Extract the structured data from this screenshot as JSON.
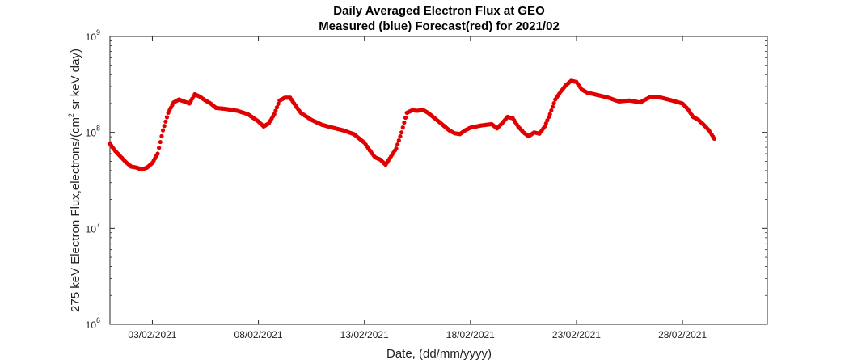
{
  "chart_data": {
    "type": "scatter",
    "title": "Daily Averaged Electron Flux at GEO",
    "subtitle": "Measured (blue) Forecast(red) for 2021/02",
    "xlabel": "Date, (dd/mm/yyyy)",
    "ylabel": {
      "main": "275 keV Electron Flux,electrons/(cm",
      "sup": "2",
      "tail": " sr keV day)"
    },
    "y_scale": "log",
    "ylim": [
      1000000,
      1000000000
    ],
    "y_ticks": [
      {
        "value": 1000000,
        "base": "10",
        "exp": "6"
      },
      {
        "value": 10000000,
        "base": "10",
        "exp": "7"
      },
      {
        "value": 100000000,
        "base": "10",
        "exp": "8"
      },
      {
        "value": 1000000000,
        "base": "10",
        "exp": "9"
      }
    ],
    "xlim": [
      "2021-02-01",
      "2021-03-04"
    ],
    "x_ticks": [
      {
        "value": "2021-02-03",
        "label": "03/02/2021"
      },
      {
        "value": "2021-02-08",
        "label": "08/02/2021"
      },
      {
        "value": "2021-02-13",
        "label": "13/02/2021"
      },
      {
        "value": "2021-02-18",
        "label": "18/02/2021"
      },
      {
        "value": "2021-02-23",
        "label": "23/02/2021"
      },
      {
        "value": "2021-02-28",
        "label": "28/02/2021"
      }
    ],
    "grid": false,
    "series": [
      {
        "color": "#e00000",
        "points": [
          [
            "2021-02-01T00:00",
            76000000.0
          ],
          [
            "2021-02-01T06:00",
            64000000.0
          ],
          [
            "2021-02-01T12:00",
            56000000.0
          ],
          [
            "2021-02-01T18:00",
            49000000.0
          ],
          [
            "2021-02-02T00:00",
            44000000.0
          ],
          [
            "2021-02-02T06:00",
            43000000.0
          ],
          [
            "2021-02-02T12:00",
            41000000.0
          ],
          [
            "2021-02-02T18:00",
            43000000.0
          ],
          [
            "2021-02-03T00:00",
            48000000.0
          ],
          [
            "2021-02-03T06:00",
            60000000.0
          ],
          [
            "2021-02-03T12:00",
            105000000.0
          ],
          [
            "2021-02-03T18:00",
            160000000.0
          ],
          [
            "2021-02-04T00:00",
            205000000.0
          ],
          [
            "2021-02-04T06:00",
            220000000.0
          ],
          [
            "2021-02-04T12:00",
            210000000.0
          ],
          [
            "2021-02-04T18:00",
            200000000.0
          ],
          [
            "2021-02-05T00:00",
            250000000.0
          ],
          [
            "2021-02-05T06:00",
            235000000.0
          ],
          [
            "2021-02-05T12:00",
            215000000.0
          ],
          [
            "2021-02-05T18:00",
            200000000.0
          ],
          [
            "2021-02-06T00:00",
            180000000.0
          ],
          [
            "2021-02-06T12:00",
            175000000.0
          ],
          [
            "2021-02-07T00:00",
            168000000.0
          ],
          [
            "2021-02-07T12:00",
            155000000.0
          ],
          [
            "2021-02-08T00:00",
            130000000.0
          ],
          [
            "2021-02-08T06:00",
            115000000.0
          ],
          [
            "2021-02-08T12:00",
            125000000.0
          ],
          [
            "2021-02-08T18:00",
            155000000.0
          ],
          [
            "2021-02-09T00:00",
            215000000.0
          ],
          [
            "2021-02-09T06:00",
            230000000.0
          ],
          [
            "2021-02-09T12:00",
            230000000.0
          ],
          [
            "2021-02-09T18:00",
            190000000.0
          ],
          [
            "2021-02-10T00:00",
            160000000.0
          ],
          [
            "2021-02-10T12:00",
            135000000.0
          ],
          [
            "2021-02-11T00:00",
            120000000.0
          ],
          [
            "2021-02-11T12:00",
            112000000.0
          ],
          [
            "2021-02-12T00:00",
            105000000.0
          ],
          [
            "2021-02-12T12:00",
            96000000.0
          ],
          [
            "2021-02-13T00:00",
            78000000.0
          ],
          [
            "2021-02-13T06:00",
            65000000.0
          ],
          [
            "2021-02-13T12:00",
            55000000.0
          ],
          [
            "2021-02-13T18:00",
            52000000.0
          ],
          [
            "2021-02-14T00:00",
            46000000.0
          ],
          [
            "2021-02-14T06:00",
            56000000.0
          ],
          [
            "2021-02-14T12:00",
            68000000.0
          ],
          [
            "2021-02-14T18:00",
            100000000.0
          ],
          [
            "2021-02-15T00:00",
            160000000.0
          ],
          [
            "2021-02-15T06:00",
            170000000.0
          ],
          [
            "2021-02-15T12:00",
            168000000.0
          ],
          [
            "2021-02-15T18:00",
            172000000.0
          ],
          [
            "2021-02-16T00:00",
            160000000.0
          ],
          [
            "2021-02-16T12:00",
            130000000.0
          ],
          [
            "2021-02-17T00:00",
            105000000.0
          ],
          [
            "2021-02-17T06:00",
            98000000.0
          ],
          [
            "2021-02-17T12:00",
            96000000.0
          ],
          [
            "2021-02-17T18:00",
            105000000.0
          ],
          [
            "2021-02-18T00:00",
            112000000.0
          ],
          [
            "2021-02-18T12:00",
            118000000.0
          ],
          [
            "2021-02-19T00:00",
            122000000.0
          ],
          [
            "2021-02-19T06:00",
            110000000.0
          ],
          [
            "2021-02-19T12:00",
            125000000.0
          ],
          [
            "2021-02-19T18:00",
            145000000.0
          ],
          [
            "2021-02-20T00:00",
            140000000.0
          ],
          [
            "2021-02-20T06:00",
            115000000.0
          ],
          [
            "2021-02-20T12:00",
            100000000.0
          ],
          [
            "2021-02-20T18:00",
            91000000.0
          ],
          [
            "2021-02-21T00:00",
            100000000.0
          ],
          [
            "2021-02-21T06:00",
            97000000.0
          ],
          [
            "2021-02-21T12:00",
            115000000.0
          ],
          [
            "2021-02-21T18:00",
            155000000.0
          ],
          [
            "2021-02-22T00:00",
            220000000.0
          ],
          [
            "2021-02-22T06:00",
            265000000.0
          ],
          [
            "2021-02-22T12:00",
            310000000.0
          ],
          [
            "2021-02-22T18:00",
            345000000.0
          ],
          [
            "2021-02-23T00:00",
            335000000.0
          ],
          [
            "2021-02-23T06:00",
            280000000.0
          ],
          [
            "2021-02-23T12:00",
            260000000.0
          ],
          [
            "2021-02-24T00:00",
            245000000.0
          ],
          [
            "2021-02-24T12:00",
            230000000.0
          ],
          [
            "2021-02-25T00:00",
            210000000.0
          ],
          [
            "2021-02-25T12:00",
            215000000.0
          ],
          [
            "2021-02-26T00:00",
            205000000.0
          ],
          [
            "2021-02-26T06:00",
            220000000.0
          ],
          [
            "2021-02-26T12:00",
            235000000.0
          ],
          [
            "2021-02-27T00:00",
            230000000.0
          ],
          [
            "2021-02-27T12:00",
            215000000.0
          ],
          [
            "2021-02-28T00:00",
            200000000.0
          ],
          [
            "2021-02-28T06:00",
            175000000.0
          ],
          [
            "2021-02-28T12:00",
            145000000.0
          ],
          [
            "2021-02-28T18:00",
            135000000.0
          ],
          [
            "2021-03-01T00:00",
            120000000.0
          ],
          [
            "2021-03-01T06:00",
            105000000.0
          ],
          [
            "2021-03-01T12:00",
            86000000.0
          ]
        ]
      }
    ]
  }
}
